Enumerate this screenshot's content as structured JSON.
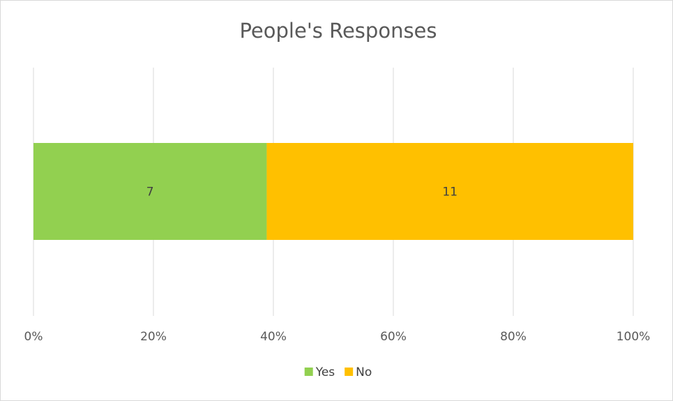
{
  "chart_data": {
    "type": "bar",
    "orientation": "horizontal",
    "stacking": "percent",
    "title": "People's Responses",
    "categories": [
      ""
    ],
    "series": [
      {
        "name": "Yes",
        "values": [
          7
        ],
        "color": "#92d050"
      },
      {
        "name": "No",
        "values": [
          11
        ],
        "color": "#ffc000"
      }
    ],
    "xlim": [
      0,
      100
    ],
    "x_ticks": [
      "0%",
      "20%",
      "40%",
      "60%",
      "80%",
      "100%"
    ],
    "grid": true,
    "legend_position": "bottom",
    "data_labels": true
  }
}
